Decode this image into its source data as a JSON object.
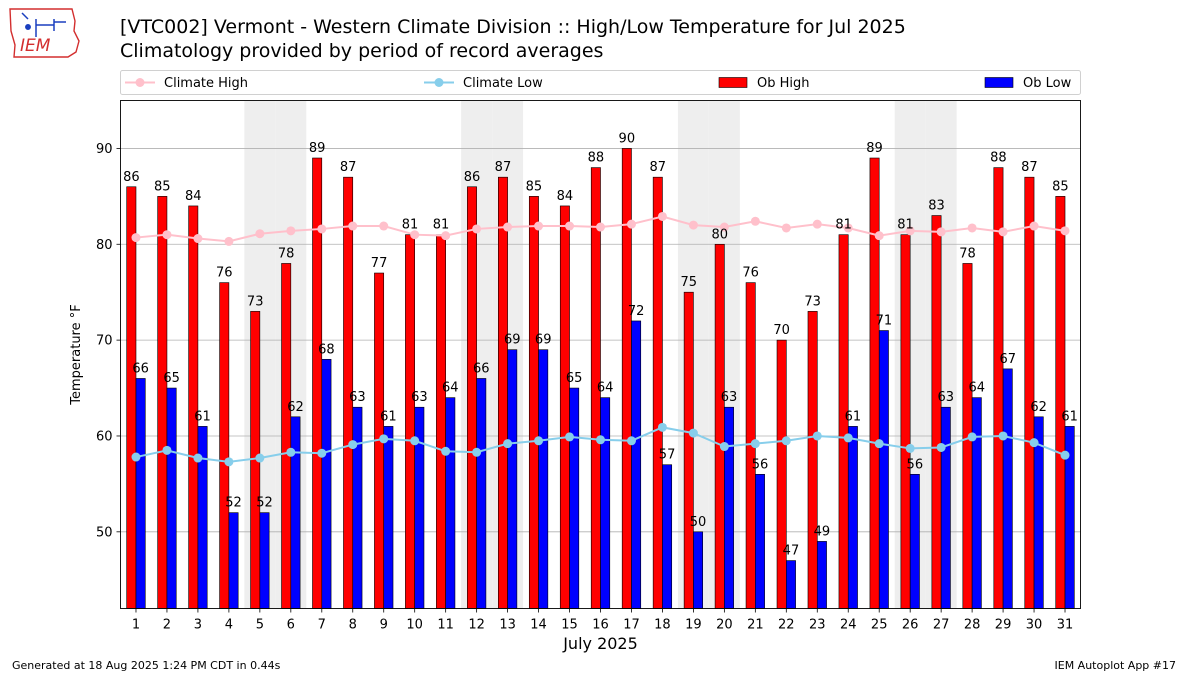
{
  "header": {
    "logo_text": "IEM",
    "title_line1": "[VTC002] Vermont - Western Climate Division :: High/Low Temperature for Jul 2025",
    "title_line2": "Climatology provided by period of record averages"
  },
  "footer": {
    "left": "Generated at 18 Aug 2025 1:24 PM CDT in 0.44s",
    "right": "IEM Autoplot App #17"
  },
  "chart_data": {
    "type": "bar",
    "title": "[VTC002] Vermont - Western Climate Division :: High/Low Temperature for Jul 2025",
    "subtitle": "Climatology provided by period of record averages",
    "xlabel": "July 2025",
    "ylabel": "Temperature °F",
    "ylim": [
      42,
      95
    ],
    "yticks": [
      50,
      60,
      70,
      80,
      90
    ],
    "grid": "horizontal",
    "legend_position": "top",
    "weekend_shading_days": [
      5,
      6,
      12,
      13,
      19,
      20,
      26,
      27
    ],
    "categories": [
      1,
      2,
      3,
      4,
      5,
      6,
      7,
      8,
      9,
      10,
      11,
      12,
      13,
      14,
      15,
      16,
      17,
      18,
      19,
      20,
      21,
      22,
      23,
      24,
      25,
      26,
      27,
      28,
      29,
      30,
      31
    ],
    "series": [
      {
        "name": "Ob High",
        "kind": "bar",
        "color": "#ff0000",
        "values": [
          86,
          85,
          84,
          76,
          73,
          78,
          89,
          87,
          77,
          81,
          81,
          86,
          87,
          85,
          84,
          88,
          90,
          87,
          75,
          80,
          76,
          70,
          73,
          81,
          89,
          81,
          83,
          78,
          88,
          87,
          85
        ]
      },
      {
        "name": "Ob Low",
        "kind": "bar",
        "color": "#0000ff",
        "values": [
          66,
          65,
          61,
          52,
          52,
          62,
          68,
          63,
          61,
          63,
          64,
          66,
          69,
          69,
          65,
          64,
          72,
          57,
          50,
          63,
          56,
          47,
          49,
          61,
          71,
          56,
          63,
          64,
          67,
          62,
          61
        ]
      },
      {
        "name": "Climate High",
        "kind": "line",
        "color": "#ffc0cb",
        "values": [
          80.7,
          81.0,
          80.6,
          80.3,
          81.1,
          81.4,
          81.6,
          81.9,
          81.9,
          81.0,
          80.9,
          81.6,
          81.8,
          81.9,
          81.9,
          81.8,
          82.1,
          82.9,
          82.0,
          81.8,
          82.4,
          81.7,
          82.1,
          81.7,
          80.9,
          81.4,
          81.3,
          81.7,
          81.3,
          81.9,
          81.4
        ]
      },
      {
        "name": "Climate Low",
        "kind": "line",
        "color": "#87ceeb",
        "values": [
          57.8,
          58.5,
          57.7,
          57.3,
          57.7,
          58.3,
          58.2,
          59.1,
          59.7,
          59.5,
          58.4,
          58.3,
          59.2,
          59.5,
          59.9,
          59.6,
          59.5,
          60.9,
          60.3,
          58.9,
          59.2,
          59.5,
          60.0,
          59.8,
          59.2,
          58.7,
          58.8,
          59.9,
          60.0,
          59.3,
          58.0
        ]
      }
    ]
  }
}
